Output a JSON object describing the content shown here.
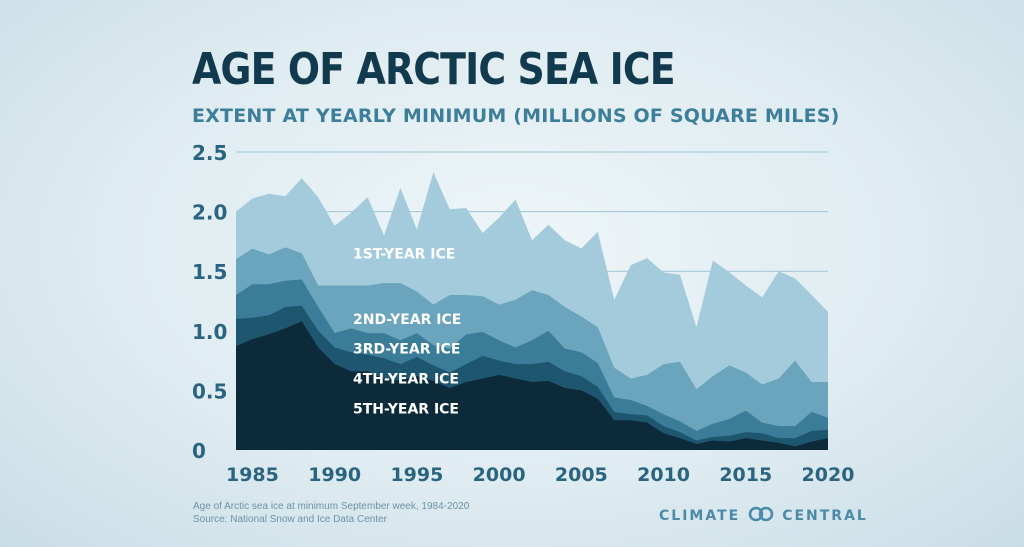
{
  "chart_data": {
    "type": "area",
    "stacked": true,
    "title": "AGE OF ARCTIC SEA ICE",
    "subtitle": "EXTENT AT YEARLY MINIMUM (MILLIONS OF SQUARE MILES)",
    "xlabel": "",
    "ylabel": "",
    "ylim": [
      0,
      2.5
    ],
    "yticks": [
      "0",
      "0.5",
      "1.0",
      "1.5",
      "2.0",
      "2.5"
    ],
    "ytick_values": [
      0,
      0.5,
      1.0,
      1.5,
      2.0,
      2.5
    ],
    "xticks": [
      "1985",
      "1990",
      "1995",
      "2000",
      "2005",
      "2010",
      "2015",
      "2020"
    ],
    "xtick_values": [
      1985,
      1990,
      1995,
      2000,
      2005,
      2010,
      2015,
      2020
    ],
    "grid": true,
    "x": [
      1984,
      1985,
      1986,
      1987,
      1988,
      1989,
      1990,
      1991,
      1992,
      1993,
      1994,
      1995,
      1996,
      1997,
      1998,
      1999,
      2000,
      2001,
      2002,
      2003,
      2004,
      2005,
      2006,
      2007,
      2008,
      2009,
      2010,
      2011,
      2012,
      2013,
      2014,
      2015,
      2016,
      2017,
      2018,
      2019,
      2020
    ],
    "series": [
      {
        "name": "5TH-YEAR ICE",
        "color": "#0d2a3a",
        "values": [
          0.87,
          0.93,
          0.97,
          1.02,
          1.08,
          0.86,
          0.72,
          0.66,
          0.66,
          0.6,
          0.58,
          0.62,
          0.58,
          0.52,
          0.57,
          0.6,
          0.63,
          0.6,
          0.57,
          0.58,
          0.52,
          0.5,
          0.43,
          0.25,
          0.25,
          0.23,
          0.14,
          0.1,
          0.05,
          0.08,
          0.07,
          0.1,
          0.08,
          0.06,
          0.03,
          0.07,
          0.1
        ]
      },
      {
        "name": "4TH-YEAR ICE",
        "color": "#1e5670",
        "values": [
          0.23,
          0.18,
          0.16,
          0.18,
          0.13,
          0.14,
          0.14,
          0.16,
          0.14,
          0.17,
          0.14,
          0.16,
          0.13,
          0.13,
          0.15,
          0.19,
          0.12,
          0.12,
          0.15,
          0.16,
          0.14,
          0.12,
          0.1,
          0.07,
          0.05,
          0.06,
          0.06,
          0.05,
          0.03,
          0.03,
          0.05,
          0.05,
          0.06,
          0.04,
          0.07,
          0.09,
          0.07
        ]
      },
      {
        "name": "3RD-YEAR ICE",
        "color": "#3b7d99",
        "values": [
          0.2,
          0.28,
          0.26,
          0.22,
          0.22,
          0.2,
          0.12,
          0.2,
          0.18,
          0.21,
          0.2,
          0.2,
          0.17,
          0.2,
          0.25,
          0.2,
          0.17,
          0.14,
          0.2,
          0.26,
          0.19,
          0.2,
          0.2,
          0.12,
          0.12,
          0.08,
          0.1,
          0.09,
          0.08,
          0.11,
          0.14,
          0.18,
          0.09,
          0.1,
          0.1,
          0.16,
          0.1
        ]
      },
      {
        "name": "2ND-YEAR ICE",
        "color": "#6aa4bd",
        "values": [
          0.3,
          0.3,
          0.25,
          0.28,
          0.22,
          0.18,
          0.4,
          0.36,
          0.4,
          0.42,
          0.48,
          0.35,
          0.34,
          0.45,
          0.33,
          0.3,
          0.3,
          0.4,
          0.42,
          0.3,
          0.35,
          0.3,
          0.3,
          0.25,
          0.18,
          0.26,
          0.42,
          0.5,
          0.35,
          0.4,
          0.45,
          0.32,
          0.32,
          0.4,
          0.55,
          0.25,
          0.3
        ]
      },
      {
        "name": "1ST-YEAR ICE",
        "color": "#a3cbdc",
        "values": [
          0.4,
          0.42,
          0.51,
          0.43,
          0.63,
          0.74,
          0.5,
          0.61,
          0.74,
          0.4,
          0.8,
          0.52,
          1.11,
          0.72,
          0.73,
          0.53,
          0.73,
          0.84,
          0.42,
          0.59,
          0.56,
          0.57,
          0.8,
          0.57,
          0.95,
          0.98,
          0.77,
          0.73,
          0.52,
          0.97,
          0.78,
          0.73,
          0.73,
          0.9,
          0.69,
          0.73,
          0.59
        ]
      }
    ]
  },
  "footnote": {
    "line1": "Age of Arctic sea ice at minimum September week, 1984-2020",
    "line2": "Source: National Snow and Ice Data Center"
  },
  "brand": {
    "left": "CLIMATE",
    "right": "CENTRAL",
    "logo_icon": "linked-rings-icon"
  }
}
